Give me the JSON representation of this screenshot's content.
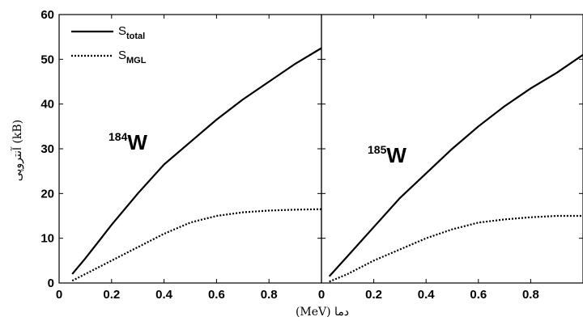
{
  "chart_data": [
    {
      "type": "line",
      "panel": "left",
      "annotation": {
        "mass_number": "184",
        "symbol": "W"
      },
      "xlabel": "(MeV) دما",
      "ylabel": "آنتروپی (kB)",
      "xlim": [
        0,
        1.0
      ],
      "ylim": [
        0,
        60
      ],
      "xticks": [
        "0",
        "0.2",
        "0.4",
        "0.6",
        "0.8"
      ],
      "yticks": [
        "0",
        "10",
        "20",
        "30",
        "40",
        "50",
        "60"
      ],
      "legend": {
        "placement": "top-left",
        "entries": [
          {
            "base": "S",
            "sub": "total",
            "style": "solid"
          },
          {
            "base": "S",
            "sub": "MGL",
            "style": "dotted"
          }
        ]
      },
      "series": [
        {
          "name": "S_total",
          "style": "solid",
          "x": [
            0.05,
            0.1,
            0.2,
            0.3,
            0.4,
            0.5,
            0.6,
            0.7,
            0.8,
            0.9,
            1.0
          ],
          "y": [
            2,
            5.5,
            13,
            20,
            26.5,
            31.5,
            36.5,
            41,
            45,
            49,
            52.5
          ]
        },
        {
          "name": "S_MGL",
          "style": "dotted",
          "x": [
            0.05,
            0.1,
            0.2,
            0.3,
            0.4,
            0.5,
            0.6,
            0.7,
            0.8,
            0.9,
            1.0
          ],
          "y": [
            0.5,
            2,
            5,
            8,
            11,
            13.5,
            15,
            15.8,
            16.2,
            16.4,
            16.5
          ]
        }
      ]
    },
    {
      "type": "line",
      "panel": "right",
      "annotation": {
        "mass_number": "185",
        "symbol": "W"
      },
      "xlim": [
        0,
        1.0
      ],
      "ylim": [
        0,
        60
      ],
      "xticks": [
        "0",
        "0.2",
        "0.4",
        "0.6",
        "0.8"
      ],
      "series": [
        {
          "name": "S_total",
          "style": "solid",
          "x": [
            0.03,
            0.1,
            0.2,
            0.3,
            0.4,
            0.5,
            0.6,
            0.7,
            0.8,
            0.9,
            1.0
          ],
          "y": [
            1.5,
            6,
            12.5,
            19,
            24.5,
            30,
            35,
            39.5,
            43.5,
            47,
            51
          ]
        },
        {
          "name": "S_MGL",
          "style": "dotted",
          "x": [
            0.03,
            0.1,
            0.2,
            0.3,
            0.4,
            0.5,
            0.6,
            0.7,
            0.8,
            0.9,
            1.0
          ],
          "y": [
            0.3,
            2,
            5,
            7.5,
            10,
            12,
            13.5,
            14.2,
            14.7,
            15,
            15
          ]
        }
      ]
    }
  ]
}
